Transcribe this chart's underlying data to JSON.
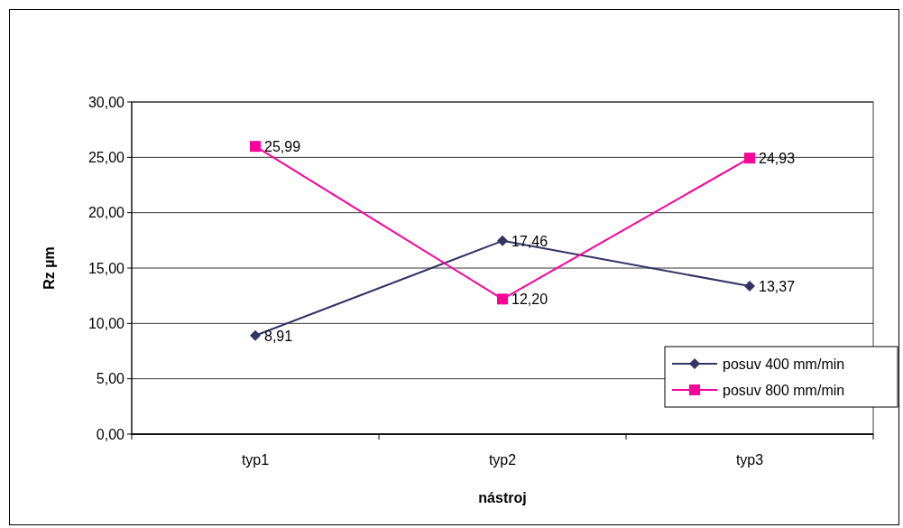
{
  "chart_data": {
    "type": "line",
    "xlabel": "nástroj",
    "ylabel": "Rz µm",
    "categories": [
      "typ1",
      "typ2",
      "typ3"
    ],
    "series": [
      {
        "name": "posuv 400 mm/min",
        "color": "#333366",
        "marker": "diamond",
        "values": [
          8.91,
          17.46,
          13.37
        ],
        "value_labels": [
          "8,91",
          "17,46",
          "13,37"
        ]
      },
      {
        "name": "posuv 800 mm/min",
        "color": "#ff0099",
        "marker": "square",
        "values": [
          25.99,
          12.2,
          24.93
        ],
        "value_labels": [
          "25,99",
          "12,20",
          "24,93"
        ]
      }
    ],
    "ylim": [
      0,
      30
    ],
    "yticks": [
      {
        "value": 0,
        "label": "0,00"
      },
      {
        "value": 5,
        "label": "5,00"
      },
      {
        "value": 10,
        "label": "10,00"
      },
      {
        "value": 15,
        "label": "15,00"
      },
      {
        "value": 20,
        "label": "20,00"
      },
      {
        "value": 25,
        "label": "25,00"
      },
      {
        "value": 30,
        "label": "30,00"
      }
    ],
    "grid": "y",
    "legend": "bottom right",
    "line_style": "solid"
  }
}
